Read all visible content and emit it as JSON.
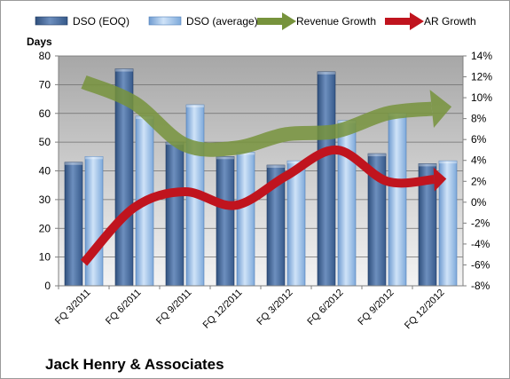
{
  "chart_data": {
    "type": "bar",
    "title": "Jack Henry & Associates",
    "ylabel": "Days",
    "ylim": [
      0,
      80
    ],
    "y_ticks": [
      0,
      10,
      20,
      30,
      40,
      50,
      60,
      70,
      80
    ],
    "y2lim": [
      -8,
      14
    ],
    "y2_ticks": [
      "-8%",
      "-6%",
      "-4%",
      "-2%",
      "0%",
      "2%",
      "4%",
      "6%",
      "8%",
      "10%",
      "12%",
      "14%"
    ],
    "y2_tick_values": [
      -8,
      -6,
      -4,
      -2,
      0,
      2,
      4,
      6,
      8,
      10,
      12,
      14
    ],
    "categories": [
      "FQ 3/2011",
      "FQ 6/2011",
      "FQ 9/2011",
      "FQ 12/2011",
      "FQ 3/2012",
      "FQ 6/2012",
      "FQ 9/2012",
      "FQ 12/2012"
    ],
    "grid": "horizontal",
    "legend_position": "top",
    "series": [
      {
        "name": "DSO (EOQ)",
        "kind": "bar",
        "axis": "left",
        "color": "#4a6c9c",
        "values": [
          43,
          75.5,
          50,
          45,
          42,
          74.5,
          46,
          42.5
        ]
      },
      {
        "name": "DSO (average)",
        "kind": "bar",
        "axis": "left",
        "color": "#a9c9ec",
        "values": [
          45,
          59,
          63,
          46.5,
          43.5,
          57.5,
          60,
          43.5
        ]
      },
      {
        "name": "Revenue Growth",
        "kind": "arrow-line",
        "axis": "right",
        "color": "#77933c",
        "values": [
          11.5,
          9.5,
          5.5,
          5.2,
          6.5,
          6.8,
          8.5,
          9
        ]
      },
      {
        "name": "AR Growth",
        "kind": "arrow-line",
        "axis": "right",
        "color": "#c0141e",
        "values": [
          -5.8,
          -0.5,
          1,
          -0.3,
          2.5,
          5,
          2,
          2.2
        ]
      }
    ]
  }
}
